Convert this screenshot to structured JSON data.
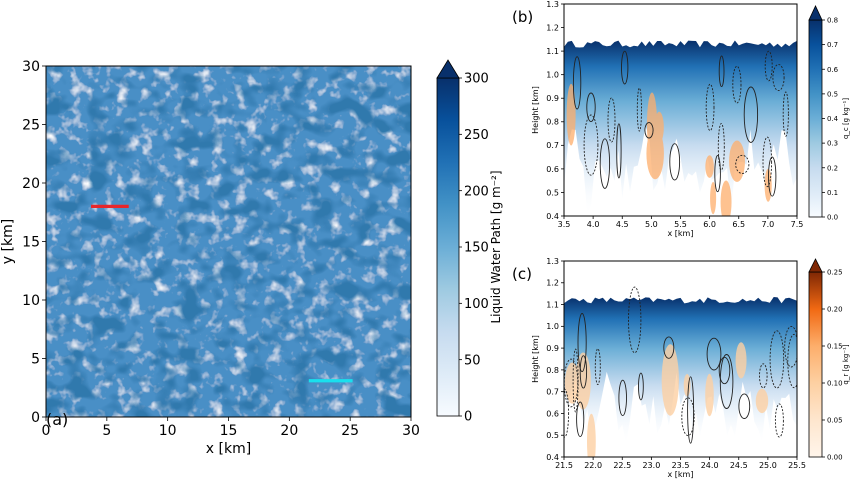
{
  "chart_data": [
    {
      "panel": "(a)",
      "type": "heatmap",
      "xlabel": "x [km]",
      "ylabel": "y [km]",
      "xlim": [
        0,
        30
      ],
      "ylim": [
        0,
        30
      ],
      "xticks": [
        "0",
        "5",
        "10",
        "15",
        "20",
        "25",
        "30"
      ],
      "yticks": [
        "0",
        "5",
        "10",
        "15",
        "20",
        "25",
        "30"
      ],
      "colorbar": {
        "label": "Liquid Water Path [g m⁻²]",
        "range": [
          0,
          300
        ],
        "ticks": [
          "0",
          "50",
          "100",
          "150",
          "200",
          "250",
          "300"
        ],
        "extend": "max",
        "cmap": "Blues"
      },
      "lines": [
        {
          "color": "#e8262b",
          "x": [
            3.7,
            6.8
          ],
          "y": [
            18.0,
            18.0
          ]
        },
        {
          "color": "#19e0ee",
          "x": [
            21.6,
            25.2
          ],
          "y": [
            3.1,
            3.1
          ]
        }
      ]
    },
    {
      "panel": "(b)",
      "type": "heatmap",
      "xlabel": "x [km]",
      "ylabel": "Height [km]",
      "xlim": [
        3.5,
        7.5
      ],
      "ylim": [
        0.4,
        1.3
      ],
      "xticks": [
        "3.5",
        "4.0",
        "4.5",
        "5.0",
        "5.5",
        "6.0",
        "6.5",
        "7.0",
        "7.5"
      ],
      "yticks": [
        "0.4",
        "0.5",
        "0.6",
        "0.7",
        "0.8",
        "0.9",
        "1.0",
        "1.1",
        "1.2",
        "1.3"
      ],
      "colorbar": {
        "label": "q_c [g kg⁻¹]",
        "range": [
          0,
          0.8
        ],
        "ticks": [
          "0.0",
          "0.1",
          "0.2",
          "0.3",
          "0.4",
          "0.5",
          "0.6",
          "0.7",
          "0.8"
        ],
        "extend": "max",
        "cmap": "Blues"
      },
      "cloud_top_km": 1.13
    },
    {
      "panel": "(c)",
      "type": "heatmap",
      "xlabel": "x [km]",
      "ylabel": "Height [km]",
      "xlim": [
        21.5,
        25.5
      ],
      "ylim": [
        0.4,
        1.3
      ],
      "xticks": [
        "21.5",
        "22.0",
        "22.5",
        "23.0",
        "23.5",
        "24.0",
        "24.5",
        "25.0",
        "25.5"
      ],
      "yticks": [
        "0.4",
        "0.5",
        "0.6",
        "0.7",
        "0.8",
        "0.9",
        "1.0",
        "1.1",
        "1.2",
        "1.3"
      ],
      "colorbar": {
        "label": "q_r [g kg⁻¹]",
        "range": [
          0,
          0.25
        ],
        "ticks": [
          "0.00",
          "0.05",
          "0.10",
          "0.15",
          "0.20",
          "0.25"
        ],
        "extend": "max",
        "cmap": "Oranges"
      },
      "cloud_top_km": 1.12
    }
  ],
  "labels": {
    "a": "(a)",
    "b": "(b)",
    "c": "(c)"
  },
  "colors": {
    "blues": [
      "#f7fbff",
      "#deebf7",
      "#c6dbef",
      "#9ecae1",
      "#6baed6",
      "#4292c6",
      "#2171b5",
      "#08519c",
      "#08306b"
    ],
    "oranges": [
      "#fff5eb",
      "#fee6ce",
      "#fdd0a2",
      "#fdae6b",
      "#fd8d3c",
      "#f16913",
      "#d94801",
      "#a63603",
      "#7f2704"
    ]
  }
}
